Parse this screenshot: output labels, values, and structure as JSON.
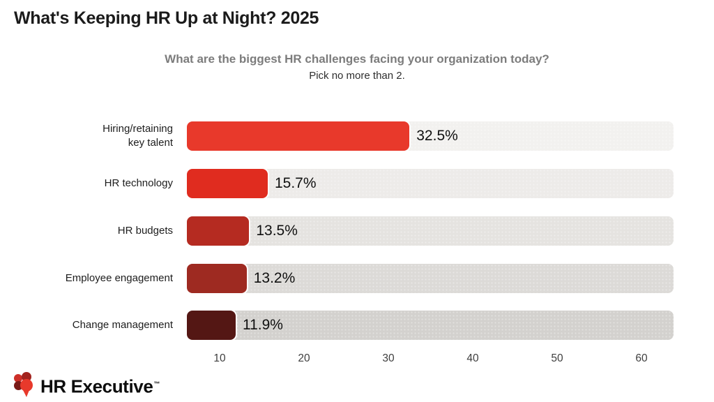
{
  "header": {
    "title": "What's Keeping HR Up at Night? 2025"
  },
  "subtitle": {
    "line1": "What are the biggest HR challenges facing your organization today?",
    "line2": "Pick no more than 2."
  },
  "chart_data": {
    "type": "bar",
    "orientation": "horizontal",
    "title": "What's Keeping HR Up at Night? 2025",
    "question": "What are the biggest HR challenges facing your organization today?",
    "instruction": "Pick no more than 2.",
    "categories": [
      "Hiring/retaining key talent",
      "HR technology",
      "HR budgets",
      "Employee engagement",
      "Change management"
    ],
    "values": [
      32.5,
      15.7,
      13.5,
      13.2,
      11.9
    ],
    "unit": "%",
    "xlabel": "",
    "ylabel": "",
    "x_ticks": [
      10,
      20,
      30,
      40,
      50,
      60
    ],
    "x_tick_labels": [
      "10",
      "20",
      "30",
      "40",
      "50",
      "60"
    ],
    "xlim": [
      0,
      64
    ],
    "grid": false,
    "legend": false,
    "rows": [
      {
        "label": "Hiring/retaining\nkey talent",
        "value": 32.5,
        "display": "32.5%",
        "bar_color": "#e8392b",
        "track_color": "#f2f1ef"
      },
      {
        "label": "HR technology",
        "value": 15.7,
        "display": "15.7%",
        "bar_color": "#e02c1f",
        "track_color": "#edebe9"
      },
      {
        "label": "HR budgets",
        "value": 13.5,
        "display": "13.5%",
        "bar_color": "#b52b21",
        "track_color": "#e5e3e0"
      },
      {
        "label": "Employee engagement",
        "value": 13.2,
        "display": "13.2%",
        "bar_color": "#9e2a21",
        "track_color": "#dcdad7"
      },
      {
        "label": "Change management",
        "value": 11.9,
        "display": "11.9%",
        "bar_color": "#541714",
        "track_color": "#d3d1ce"
      }
    ]
  },
  "logo": {
    "text": "HR Executive",
    "trademark": "™",
    "icon_colors": {
      "bright_red": "#e8392b",
      "mid_red": "#cd2f28",
      "dark_red": "#a2231e",
      "maroon": "#7a1a17"
    }
  }
}
